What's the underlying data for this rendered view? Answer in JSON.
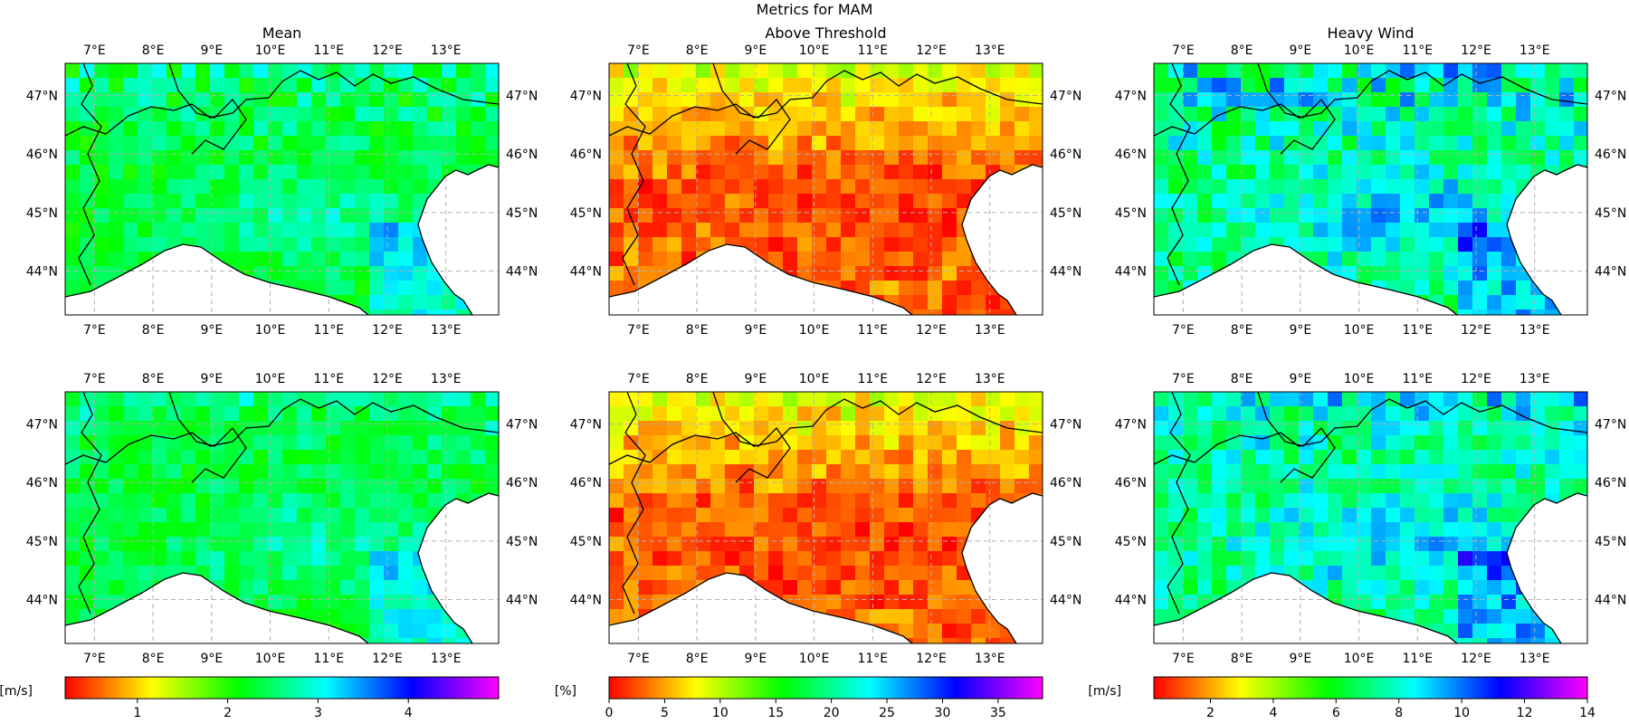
{
  "figure_title": "Metrics for MAM",
  "column_titles": [
    "Mean",
    "Above Threshold",
    "Heavy Wind"
  ],
  "lon_ticks": [
    "7°E",
    "8°E",
    "9°E",
    "10°E",
    "11°E",
    "12°E",
    "13°E"
  ],
  "lat_ticks": [
    "47°N",
    "46°N",
    "45°N",
    "44°N"
  ],
  "colorbars": [
    {
      "unit": "[m/s]",
      "min": 0.2,
      "max": 5.0,
      "ticks": [
        "1",
        "2",
        "3",
        "4"
      ],
      "tick_values": [
        1,
        2,
        3,
        4
      ]
    },
    {
      "unit": "[%]",
      "min": 0,
      "max": 39,
      "ticks": [
        "0",
        "5",
        "10",
        "15",
        "20",
        "25",
        "30",
        "35"
      ],
      "tick_values": [
        0,
        5,
        10,
        15,
        20,
        25,
        30,
        35
      ]
    },
    {
      "unit": "[m/s]",
      "min": 0.2,
      "max": 14,
      "ticks": [
        "2",
        "4",
        "6",
        "8",
        "10",
        "12",
        "14"
      ],
      "tick_values": [
        2,
        4,
        6,
        8,
        10,
        12,
        14
      ]
    }
  ],
  "colormap": "gist_rainbow (red → yellow → green → cyan → blue → magenta)",
  "colors": {
    "land_border": "#000000",
    "grid": "#b0b0b0",
    "sea": "#ffffff"
  },
  "map_extent": {
    "lon": [
      6.5,
      13.9
    ],
    "lat": [
      43.25,
      47.55
    ]
  },
  "grid": true
}
